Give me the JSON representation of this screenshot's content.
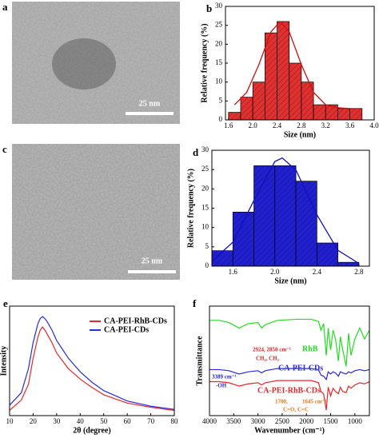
{
  "images": [
    {
      "label": "a",
      "scale_bar": "25 nm"
    },
    {
      "label": "c",
      "scale_bar": "25 nm"
    }
  ],
  "chart_data": [
    {
      "type": "histogram",
      "label": "b",
      "xlabel": "Size (nm)",
      "ylabel": "Relative frequency (%)",
      "color": "#e03030",
      "bins": [
        1.6,
        1.8,
        2.0,
        2.2,
        2.4,
        2.6,
        2.8,
        3.0,
        3.2,
        3.4,
        3.6,
        3.8
      ],
      "values": [
        2,
        6,
        10,
        23,
        26,
        15,
        10,
        4,
        4,
        3,
        3
      ],
      "fit": {
        "color": "#d01010",
        "x": [
          1.7,
          1.9,
          2.1,
          2.3,
          2.45,
          2.6,
          2.8,
          3.0,
          3.2,
          3.4,
          3.6
        ],
        "values": [
          4.0,
          7.3,
          14.6,
          23.3,
          26,
          23.3,
          14.6,
          7.3,
          4.0,
          3.2,
          3.0
        ]
      },
      "xlim": [
        1.55,
        4.0
      ],
      "ylim": [
        0,
        30
      ],
      "xticks": [
        1.6,
        {
          "value": 2.0,
          "label": "2.0"
        },
        2.4,
        2.8,
        3.2,
        3.6,
        {
          "value": 4.0,
          "label": "4.0"
        }
      ],
      "yticks": [
        0,
        5,
        10,
        15,
        20,
        25,
        30
      ]
    },
    {
      "type": "histogram",
      "label": "d",
      "xlabel": "Size (nm)",
      "ylabel": "Relative frequency (%)",
      "color": "#2020d0",
      "bins": [
        1.4,
        1.6,
        1.8,
        2.0,
        2.2,
        2.4,
        2.6,
        2.8
      ],
      "values": [
        4,
        14,
        26,
        26,
        22,
        6,
        1
      ],
      "fit": {
        "color": "#1010c0",
        "x": [
          1.4,
          1.6,
          1.8,
          2.0,
          2.07,
          2.2,
          2.4,
          2.6,
          2.8
        ],
        "values": [
          1.3,
          6.2,
          17.0,
          27.1,
          28,
          24.9,
          13.3,
          4.1,
          0.7
        ]
      },
      "xlim": [
        1.4,
        2.9
      ],
      "ylim": [
        0,
        30
      ],
      "xticks": [
        1.6,
        {
          "value": 2.0,
          "label": "2.0"
        },
        2.4,
        2.8
      ],
      "yticks": [
        0,
        5,
        10,
        15,
        20,
        25,
        30
      ]
    },
    {
      "type": "line",
      "label": "e",
      "xlabel": "2θ (degree)",
      "ylabel": "Intensity",
      "x": [
        10,
        15,
        18,
        20,
        22,
        23,
        24,
        25,
        26,
        28,
        30,
        35,
        40,
        45,
        50,
        60,
        70,
        80
      ],
      "series": [
        {
          "name": "CA-PEI-RhB-CDs",
          "color": "#e8272a",
          "values": [
            0.05,
            0.15,
            0.3,
            0.55,
            0.75,
            0.82,
            0.85,
            0.82,
            0.78,
            0.7,
            0.6,
            0.45,
            0.35,
            0.27,
            0.2,
            0.12,
            0.08,
            0.05
          ]
        },
        {
          "name": "CA-PEI-CDs",
          "color": "#2a2ae0",
          "values": [
            0.1,
            0.22,
            0.45,
            0.7,
            0.88,
            0.93,
            0.95,
            0.93,
            0.9,
            0.82,
            0.72,
            0.55,
            0.42,
            0.32,
            0.24,
            0.14,
            0.09,
            0.06
          ]
        }
      ],
      "xlim": [
        10,
        80
      ],
      "ylim": [
        0,
        1.05
      ],
      "xticks": [
        10,
        20,
        30,
        40,
        50,
        60,
        70,
        80
      ]
    },
    {
      "type": "line",
      "label": "f",
      "xlabel": "Wavenumber (cm⁻¹)",
      "ylabel": "Transmittance",
      "x": [
        4000,
        3800,
        3600,
        3389,
        3200,
        3000,
        2924,
        2850,
        2600,
        2200,
        1900,
        1750,
        1700,
        1645,
        1590,
        1550,
        1500,
        1450,
        1400,
        1340,
        1300,
        1250,
        1180,
        1130,
        1080,
        1000,
        900,
        800,
        700
      ],
      "series": [
        {
          "name": "RhB",
          "color": "#22dd22",
          "values": [
            0.87,
            0.87,
            0.85,
            0.8,
            0.84,
            0.85,
            0.8,
            0.83,
            0.87,
            0.88,
            0.88,
            0.86,
            0.78,
            0.84,
            0.55,
            0.8,
            0.6,
            0.78,
            0.7,
            0.5,
            0.72,
            0.6,
            0.45,
            0.75,
            0.55,
            0.7,
            0.8,
            0.7,
            0.78
          ]
        },
        {
          "name": "CA-PEI-CDs",
          "color": "#2a2ae0",
          "values": [
            0.42,
            0.42,
            0.41,
            0.38,
            0.4,
            0.41,
            0.39,
            0.41,
            0.43,
            0.43,
            0.43,
            0.42,
            0.37,
            0.36,
            0.33,
            0.4,
            0.38,
            0.4,
            0.39,
            0.36,
            0.4,
            0.39,
            0.38,
            0.4,
            0.39,
            0.41,
            0.42,
            0.41,
            0.42
          ]
        },
        {
          "name": "CA-PEI-RhB-CDs",
          "color": "#e8272a",
          "values": [
            0.31,
            0.31,
            0.3,
            0.27,
            0.29,
            0.3,
            0.28,
            0.3,
            0.32,
            0.32,
            0.32,
            0.3,
            0.22,
            0.2,
            0.05,
            0.26,
            0.18,
            0.25,
            0.22,
            0.2,
            0.26,
            0.22,
            0.21,
            0.27,
            0.25,
            0.28,
            0.3,
            0.29,
            0.31
          ]
        }
      ],
      "annotations": [
        {
          "text": "3389 cm⁻¹",
          "color": "#2020d0"
        },
        {
          "text": "-OH",
          "color": "#2020d0"
        },
        {
          "text": "2924, 2850 cm⁻¹",
          "color": "#e02020"
        },
        {
          "text": "CH₂, CH₃",
          "color": "#e02020"
        },
        {
          "text": "1700,",
          "color": "#f07010"
        },
        {
          "text": "1645 cm⁻¹",
          "color": "#f07010"
        },
        {
          "text": "C=O, C=C",
          "color": "#f07010"
        }
      ],
      "xlim": [
        4000,
        700
      ],
      "ylim": [
        0,
        1
      ],
      "xticks": [
        4000,
        3500,
        3000,
        2500,
        2000,
        1500,
        1000
      ]
    }
  ]
}
